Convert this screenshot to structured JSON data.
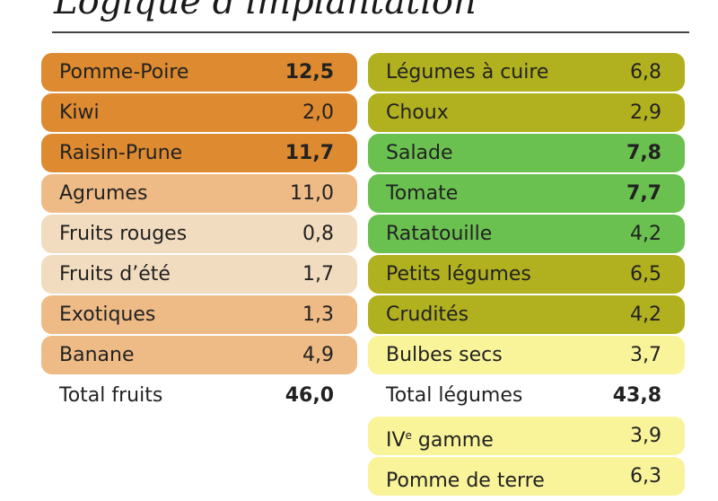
{
  "title": "Logique d'implantation",
  "colors": {
    "dark_orange": "#dd8a30",
    "light_orange": "#eebb86",
    "beige": "#f2dcbf",
    "olive": "#b1b120",
    "green": "#6ac150",
    "yellow": "#f9f39a"
  },
  "fruits": {
    "rows": [
      {
        "name": "Pomme-Poire",
        "value": "12,5",
        "bold": true,
        "color": "#dd8a30"
      },
      {
        "name": "Kiwi",
        "value": "2,0",
        "bold": false,
        "color": "#dd8a30"
      },
      {
        "name": "Raisin-Prune",
        "value": "11,7",
        "bold": true,
        "color": "#dd8a30"
      },
      {
        "name": "Agrumes",
        "value": "11,0",
        "bold": false,
        "color": "#eebb86"
      },
      {
        "name": "Fruits rouges",
        "value": "0,8",
        "bold": false,
        "color": "#f2dcbf"
      },
      {
        "name": "Fruits d’été",
        "value": "1,7",
        "bold": false,
        "color": "#f2dcbf"
      },
      {
        "name": "Exotiques",
        "value": "1,3",
        "bold": false,
        "color": "#eebb86"
      },
      {
        "name": "Banane",
        "value": "4,9",
        "bold": false,
        "color": "#eebb86"
      }
    ],
    "total": {
      "name": "Total fruits",
      "value": "46,0"
    }
  },
  "legumes": {
    "rows": [
      {
        "name": "Légumes à cuire",
        "value": "6,8",
        "bold": false,
        "color": "#b1b120"
      },
      {
        "name": "Choux",
        "value": "2,9",
        "bold": false,
        "color": "#b1b120"
      },
      {
        "name": "Salade",
        "value": "7,8",
        "bold": true,
        "color": "#6ac150"
      },
      {
        "name": "Tomate",
        "value": "7,7",
        "bold": true,
        "color": "#6ac150"
      },
      {
        "name": "Ratatouille",
        "value": "4,2",
        "bold": false,
        "color": "#6ac150"
      },
      {
        "name": "Petits légumes",
        "value": "6,5",
        "bold": false,
        "color": "#b1b120"
      },
      {
        "name": "Crudités",
        "value": "4,2",
        "bold": false,
        "color": "#b1b120"
      },
      {
        "name": "Bulbes secs",
        "value": "3,7",
        "bold": false,
        "color": "#f9f39a"
      }
    ],
    "total": {
      "name": "Total légumes",
      "value": "43,8"
    },
    "extra": [
      {
        "name": "IV",
        "sup": "e",
        "rest": " gamme",
        "value": "3,9",
        "color": "#f9f39a"
      },
      {
        "name": "Pomme de terre",
        "sup": "",
        "rest": "",
        "value": "6,3",
        "color": "#f9f39a"
      }
    ]
  }
}
